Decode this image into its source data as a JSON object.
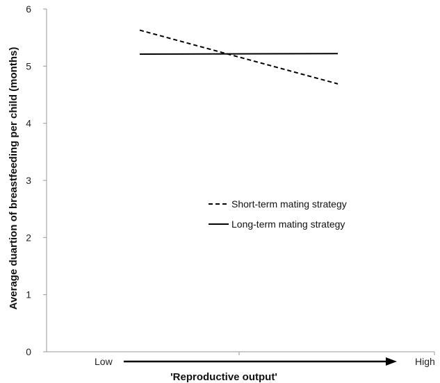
{
  "chart_data": {
    "type": "line",
    "ylabel": "Average duartion of breastfeeding per child (months)",
    "xlabel": "'Reproductive output'",
    "x_low_label": "Low",
    "x_high_label": "High",
    "ylim": [
      0,
      6
    ],
    "yticks": [
      "0",
      "1",
      "2",
      "3",
      "4",
      "5",
      "6"
    ],
    "categories": [
      "Low",
      "High"
    ],
    "series": [
      {
        "name": "Short-term mating strategy",
        "style": "dashed",
        "values": [
          5.63,
          4.69
        ]
      },
      {
        "name": "Long-term mating strategy",
        "style": "solid",
        "values": [
          5.21,
          5.22
        ]
      }
    ],
    "legend": {
      "position": "center-right"
    },
    "grid": false
  },
  "colors": {
    "line": "#000000",
    "axis": "#9a9a9a"
  }
}
